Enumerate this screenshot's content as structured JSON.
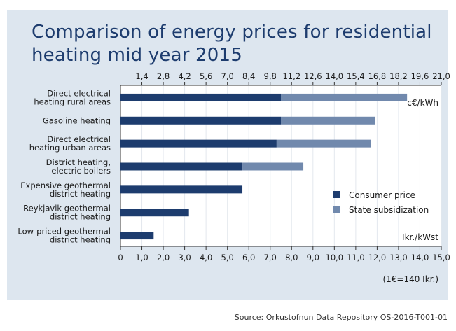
{
  "title_lines": [
    "Comparison of energy prices for residential",
    "heating mid year 2015"
  ],
  "source": "Source: Orkustofnun Data Repository OS-2016-T001-01",
  "colors": {
    "consumer": "#1d3c6e",
    "subsidy": "#7189ad",
    "background": "#dde6ef",
    "title": "#1d3c6e"
  },
  "chart_data": {
    "type": "bar",
    "orientation": "horizontal",
    "stacked": true,
    "categories": [
      [
        "Direct electrical",
        "heating rural areas"
      ],
      [
        "Gasoline heating"
      ],
      [
        "Direct electrical",
        "heating urban areas"
      ],
      [
        "District heating,",
        "electric boilers"
      ],
      [
        "Expensive geothermal",
        "district heating"
      ],
      [
        "Reykjavik geothermal",
        "district heating"
      ],
      [
        "Low-priced geothermal",
        "district heating"
      ]
    ],
    "series": [
      {
        "name": "Consumer price",
        "values": [
          7.5,
          7.5,
          7.3,
          5.7,
          5.7,
          3.2,
          1.55
        ]
      },
      {
        "name": "State subsidization",
        "values": [
          5.9,
          4.4,
          4.4,
          2.85,
          0,
          0,
          0
        ]
      }
    ],
    "bottom_axis": {
      "label": "Ikr./kWst",
      "note": "(1€=140 Ikr.)",
      "range": [
        0,
        15
      ],
      "ticks": [
        "0",
        "1,0",
        "2,0",
        "3,0",
        "4,0",
        "5,0",
        "6,0",
        "7,0",
        "8,0",
        "9,0",
        "10,0",
        "11,0",
        "12,0",
        "13,0",
        "14,0",
        "15,0"
      ]
    },
    "top_axis": {
      "label": "c€/kWh",
      "range": [
        0,
        21
      ],
      "ticks": [
        "1,4",
        "2,8",
        "4,2",
        "5,6",
        "7,0",
        "8,4",
        "9,8",
        "11,2",
        "12,6",
        "14,0",
        "15,4",
        "16,8",
        "18,2",
        "19,6",
        "21,0"
      ]
    },
    "legend_position": "bottom-right"
  }
}
